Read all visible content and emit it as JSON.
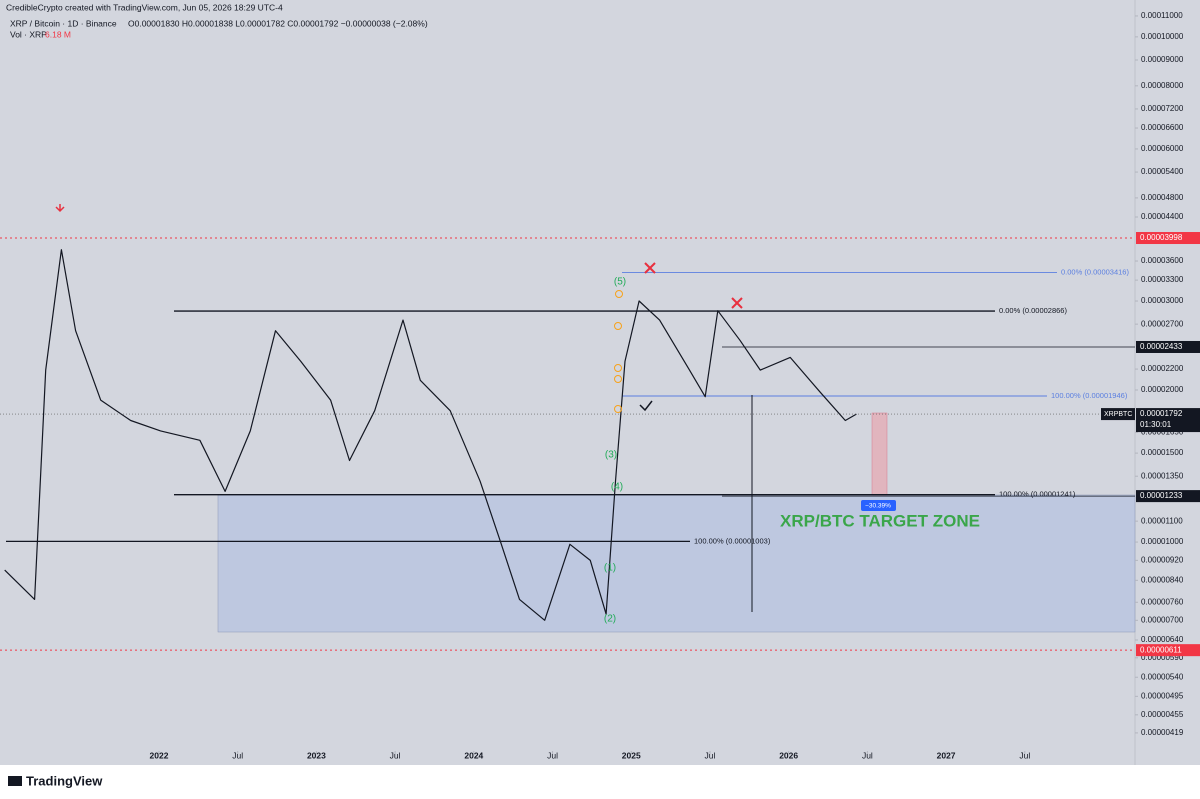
{
  "header": {
    "credit": "CredibleCrypto created with TradingView.com, Jun 05, 2026 18:29 UTC-4",
    "symbol": "XRP / Bitcoin · 1D · Binance",
    "ohlc": "O0.00001830  H0.00001838  L0.00001782  C0.00001792  −0.00000038 (−2.08%)",
    "volume_label": "Vol · XRP",
    "volume_value": "6.18 M"
  },
  "footer": {
    "brand": "TradingView"
  },
  "chart_data": {
    "type": "line",
    "log_scale": true,
    "color": "#131722",
    "x": [
      2021.02,
      2021.21,
      2021.28,
      2021.38,
      2021.47,
      2021.63,
      2021.82,
      2022.01,
      2022.26,
      2022.42,
      2022.58,
      2022.74,
      2022.9,
      2023.09,
      2023.21,
      2023.37,
      2023.55,
      2023.66,
      2023.85,
      2024.04,
      2024.17,
      2024.29,
      2024.45,
      2024.61,
      2024.74,
      2024.84,
      2024.9,
      2024.96,
      2025.05,
      2025.18,
      2025.37,
      2025.47,
      2025.55,
      2025.69,
      2025.82,
      2026.01,
      2026.2,
      2026.36,
      2026.43
    ],
    "values": [
      8.8e-06,
      7.7e-06,
      2.19e-05,
      3.79e-05,
      2.62e-05,
      1.91e-05,
      1.74e-05,
      1.66e-05,
      1.59e-05,
      1.26e-05,
      1.66e-05,
      2.62e-05,
      2.28e-05,
      1.91e-05,
      1.45e-05,
      1.82e-05,
      2.75e-05,
      2.09e-05,
      1.82e-05,
      1.32e-05,
      1e-05,
      7.7e-06,
      7e-06,
      9.9e-06,
      9.2e-06,
      7.2e-06,
      1.32e-05,
      2.28e-05,
      3e-05,
      2.75e-05,
      2.19e-05,
      1.94e-05,
      2.87e-05,
      2.51e-05,
      2.19e-05,
      2.32e-05,
      1.98e-05,
      1.74e-05,
      1.792e-05
    ],
    "xlim": [
      2020.99,
      2028.2
    ],
    "ylim": [
      3.62e-06,
      0.0001183
    ],
    "xticks": [
      2022,
      {
        "value": 2022.5,
        "label": "Jul"
      },
      2023,
      {
        "value": 2023.5,
        "label": "Jul"
      },
      2024,
      {
        "value": 2024.5,
        "label": "Jul"
      },
      2025,
      {
        "value": 2025.5,
        "label": "Jul"
      },
      2026,
      {
        "value": 2026.5,
        "label": "Jul"
      },
      2027,
      {
        "value": 2027.5,
        "label": "Jul"
      }
    ],
    "yticks": [
      {
        "value": 0.00011,
        "label": "0.00011000"
      },
      {
        "value": 0.0001,
        "label": "0.00010000"
      },
      {
        "value": 9e-05,
        "label": "0.00009000"
      },
      {
        "value": 8e-05,
        "label": "0.00008000"
      },
      {
        "value": 7.2e-05,
        "label": "0.00007200"
      },
      {
        "value": 6.6e-05,
        "label": "0.00006600"
      },
      {
        "value": 6e-05,
        "label": "0.00006000"
      },
      {
        "value": 5.4e-05,
        "label": "0.00005400"
      },
      {
        "value": 4.8e-05,
        "label": "0.00004800"
      },
      {
        "value": 4.4e-05,
        "label": "0.00004400"
      },
      {
        "value": 3.6e-05,
        "label": "0.00003600"
      },
      {
        "value": 3.3e-05,
        "label": "0.00003300"
      },
      {
        "value": 3e-05,
        "label": "0.00003000"
      },
      {
        "value": 2.7e-05,
        "label": "0.00002700"
      },
      {
        "value": 2.2e-05,
        "label": "0.00002200"
      },
      {
        "value": 2e-05,
        "label": "0.00002000"
      },
      {
        "value": 1.65e-05,
        "label": "0.00001650"
      },
      {
        "value": 1.5e-05,
        "label": "0.00001500"
      },
      {
        "value": 1.35e-05,
        "label": "0.00001350"
      },
      {
        "value": 1.1e-05,
        "label": "0.00001100"
      },
      {
        "value": 1e-05,
        "label": "0.00001000"
      },
      {
        "value": 9.2e-06,
        "label": "0.00000920"
      },
      {
        "value": 8.4e-06,
        "label": "0.00000840"
      },
      {
        "value": 7.6e-06,
        "label": "0.00000760"
      },
      {
        "value": 7e-06,
        "label": "0.00000700"
      },
      {
        "value": 6.4e-06,
        "label": "0.00000640"
      },
      {
        "value": 5.9e-06,
        "label": "0.00000590"
      },
      {
        "value": 5.4e-06,
        "label": "0.00000540"
      },
      {
        "value": 4.95e-06,
        "label": "0.00000495"
      },
      {
        "value": 4.55e-06,
        "label": "0.00000455"
      },
      {
        "value": 4.19e-06,
        "label": "0.00000419"
      }
    ],
    "axis_markers": [
      {
        "value": 3.998e-05,
        "label": "0.00003998",
        "color": "#f23645"
      },
      {
        "value": 2.433e-05,
        "label": "0.00002433",
        "color": "#131722"
      },
      {
        "value": 1.233e-05,
        "label": "0.00001233",
        "color": "#131722"
      },
      {
        "value": 6.11e-06,
        "label": "0.00000611",
        "color": "#f23645"
      }
    ],
    "levels": [
      {
        "value": 3.416e-05,
        "label": "0.00% (0.00003416)",
        "color": "#5b7fe0"
      },
      {
        "value": 2.866e-05,
        "label": "0.00% (0.00002866)",
        "color": "#131722"
      },
      {
        "value": 1.946e-05,
        "label": "100.00% (0.00001946)",
        "color": "#5b7fe0"
      },
      {
        "value": 1.241e-05,
        "label": "100.00% (0.00001241)",
        "color": "#131722"
      },
      {
        "value": 1.003e-05,
        "label": "100.00% (0.00001003)",
        "color": "#131722"
      }
    ],
    "last_price": {
      "symbol": "XRPBTC",
      "value": 1.792e-05,
      "label": "0.00001792",
      "countdown": "01:30:01"
    },
    "measure_label": "−30.39%",
    "zone_label": "XRP/BTC TARGET ZONE",
    "waves": [
      "(5)",
      "(3)",
      "(4)",
      "(1)",
      "(2)"
    ]
  }
}
